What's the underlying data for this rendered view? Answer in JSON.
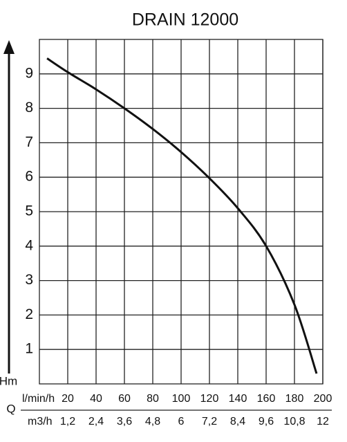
{
  "chart_data": {
    "type": "line",
    "title": "DRAIN 12000",
    "y_label": "Hm",
    "x_symbol": "Q",
    "x_label": "l/min/h",
    "x2_label": "m3/h",
    "x": [
      5.4,
      20,
      40,
      60,
      80,
      100,
      120,
      140,
      160,
      180,
      195.6
    ],
    "series": [
      {
        "name": "DRAIN 12000",
        "color": "#111111",
        "values": [
          9.45,
          9.05,
          8.55,
          8.0,
          7.4,
          6.73,
          5.97,
          5.1,
          4.0,
          2.3,
          0.3
        ]
      }
    ],
    "xlim": [
      0,
      200
    ],
    "xticks": [
      20,
      40,
      60,
      80,
      100,
      120,
      140,
      160,
      180,
      200
    ],
    "x2lim": [
      0,
      12
    ],
    "x2ticks": [
      {
        "value": 1.2,
        "label": "1,2"
      },
      {
        "value": 2.4,
        "label": "2,4"
      },
      {
        "value": 3.6,
        "label": "3,6"
      },
      {
        "value": 4.8,
        "label": "4,8"
      },
      6,
      {
        "value": 7.2,
        "label": "7,2"
      },
      {
        "value": 8.4,
        "label": "8,4"
      },
      {
        "value": 9.6,
        "label": "9,6"
      },
      {
        "value": 10.8,
        "label": "10,8"
      },
      12
    ],
    "ylim": [
      0,
      10
    ],
    "yticks": [
      1,
      2,
      3,
      4,
      5,
      6,
      7,
      8,
      9
    ],
    "grid": true
  }
}
